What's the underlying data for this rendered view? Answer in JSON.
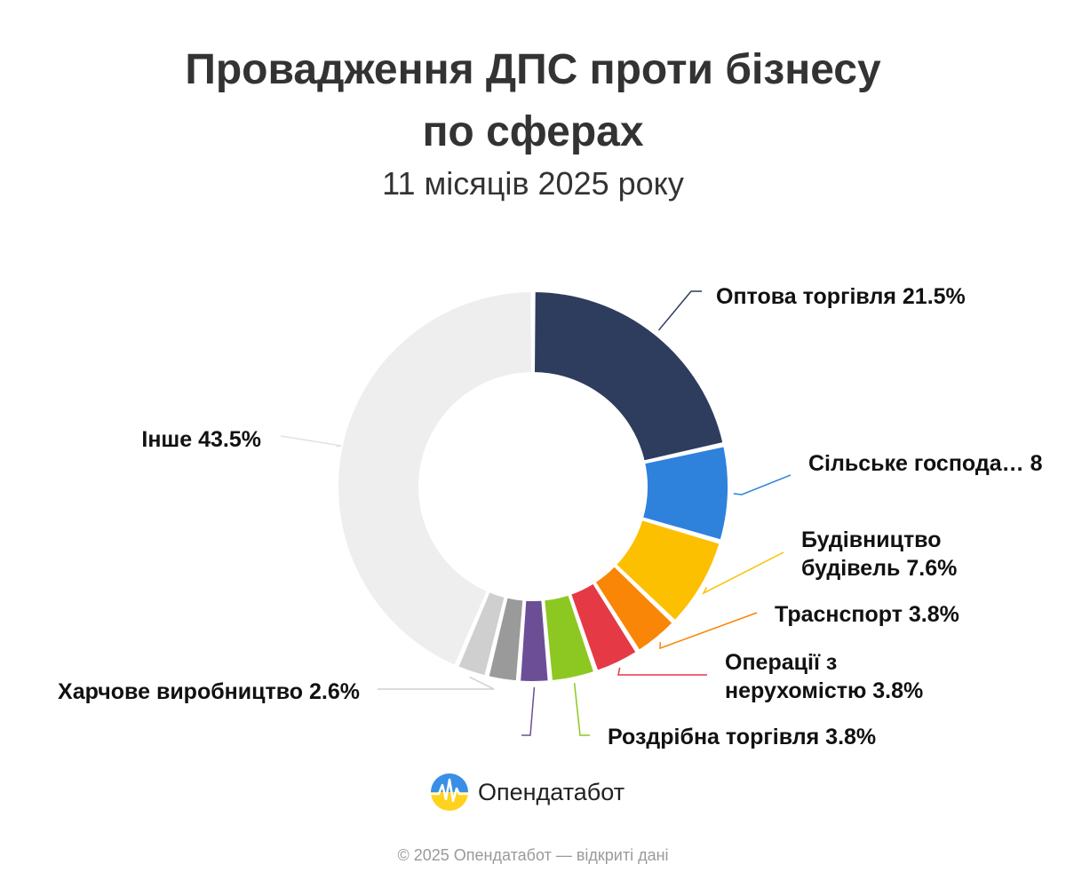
{
  "title_line1": "Провадження ДПС проти бізнесу",
  "title_line2": "по сферах",
  "subtitle": "11 місяців 2025 року",
  "brand": "Опендатабот",
  "footer": "© 2025 Опендатабот — відкриті дані",
  "chart_data": {
    "type": "pie",
    "variant": "donut",
    "title": "Провадження ДПС проти бізнесу по сферах",
    "subtitle": "11 місяців 2025 року",
    "unit": "%",
    "slices": [
      {
        "label": "Оптова торгівля",
        "value": 21.5,
        "color": "#2E3D5E",
        "display": [
          "Оптова торгівля 21.5%"
        ]
      },
      {
        "label": "Сільське господа…",
        "value": 8.0,
        "color": "#2E82DC",
        "display": [
          "Сільське господа… 8"
        ]
      },
      {
        "label": "Будівництво будівель",
        "value": 7.6,
        "color": "#FCC000",
        "display": [
          "Будівництво",
          "будівель 7.6%"
        ]
      },
      {
        "label": "Траснспорт",
        "value": 3.8,
        "color": "#F98606",
        "display": [
          "Траснспорт 3.8%"
        ]
      },
      {
        "label": "Операції з нерухомістю",
        "value": 3.8,
        "color": "#E63946",
        "display": [
          "Операції з",
          "нерухомістю 3.8%"
        ]
      },
      {
        "label": "Роздрібна торгівля",
        "value": 3.8,
        "color": "#8CC821",
        "display": [
          "Роздрібна торгівля 3.8%"
        ]
      },
      {
        "label": "",
        "value": 2.6,
        "color": "#6C4E96",
        "display": []
      },
      {
        "label": "",
        "value": 2.6,
        "color": "#9A9A9A",
        "display": []
      },
      {
        "label": "Харчове виробництво",
        "value": 2.6,
        "color": "#CFCFCF",
        "display": [
          "Харчове виробництво 2.6%"
        ]
      },
      {
        "label": "Інше",
        "value": 43.5,
        "color": "#EEEEEE",
        "display": [
          "Інше 43.5%"
        ]
      }
    ]
  }
}
